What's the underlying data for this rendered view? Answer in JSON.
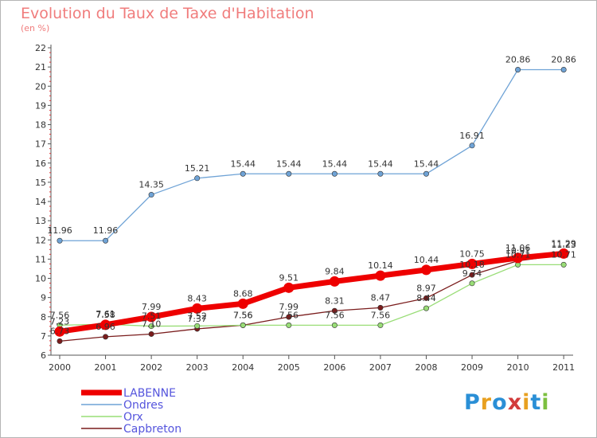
{
  "header": {
    "title": "Evolution du Taux de Taxe d'Habitation",
    "subtitle": "(en %)"
  },
  "brand": {
    "letters": [
      "P",
      "r",
      "o",
      "x",
      "i",
      "t",
      "i"
    ],
    "colors": [
      "#2a8fd6",
      "#e8a020",
      "#2a8fd6",
      "#d23c3c",
      "#e8a020",
      "#2a8fd6",
      "#7cc040"
    ]
  },
  "chart_data": {
    "type": "line",
    "title": "Evolution du Taux de Taxe d'Habitation",
    "ylabel": "(en %)",
    "xlabel": "",
    "x": [
      "2000",
      "2001",
      "2002",
      "2003",
      "2004",
      "2005",
      "2006",
      "2007",
      "2008",
      "2009",
      "2010",
      "2011"
    ],
    "ylim": [
      6,
      22
    ],
    "yticks": [
      "6",
      "7",
      "8",
      "9",
      "10",
      "11",
      "12",
      "13",
      "14",
      "15",
      "16",
      "17",
      "18",
      "19",
      "20",
      "21",
      "22"
    ],
    "grid": false,
    "legend_position": "bottom-left",
    "series": [
      {
        "name": "LABENNE",
        "color": "#ee0000",
        "values": [
          7.23,
          7.58,
          7.99,
          8.43,
          8.68,
          9.51,
          9.84,
          10.14,
          10.44,
          10.75,
          11.06,
          11.29
        ],
        "labels": [
          "7.23",
          "7.58",
          "7.99",
          "8.43",
          "8.68",
          "9.51",
          "9.84",
          "10.14",
          "10.44",
          "10.75",
          "11.06",
          "11.29"
        ]
      },
      {
        "name": "Ondres",
        "color": "#6fa3d6",
        "values": [
          11.96,
          11.96,
          14.35,
          15.21,
          15.44,
          15.44,
          15.44,
          15.44,
          15.44,
          16.91,
          20.86,
          20.86
        ],
        "labels": [
          "11.96",
          "11.96",
          "14.35",
          "15.21",
          "15.44",
          "15.44",
          "15.44",
          "15.44",
          "15.44",
          "16.91",
          "20.86",
          "20.86"
        ]
      },
      {
        "name": "Orx",
        "color": "#99dd77",
        "values": [
          7.56,
          7.61,
          7.51,
          7.52,
          7.56,
          7.56,
          7.56,
          7.56,
          8.44,
          9.74,
          10.71,
          10.71
        ],
        "labels": [
          "7.56",
          "7.61",
          "7.51",
          "7.52",
          "7.56",
          "7.56",
          "7.56",
          "7.56",
          "8.44",
          "9.74",
          "10.71",
          "10.71"
        ]
      },
      {
        "name": "Capbreton",
        "color": "#7a1c1c",
        "values": [
          6.73,
          6.96,
          7.1,
          7.37,
          7.56,
          7.99,
          8.31,
          8.47,
          8.97,
          10.18,
          10.91,
          11.23
        ],
        "labels": [
          "6.73",
          "6.96",
          "7.10",
          "7.37",
          "7.56",
          "7.99",
          "8.31",
          "8.47",
          "8.97",
          "10.18",
          "10.91",
          "11.23"
        ]
      }
    ]
  }
}
